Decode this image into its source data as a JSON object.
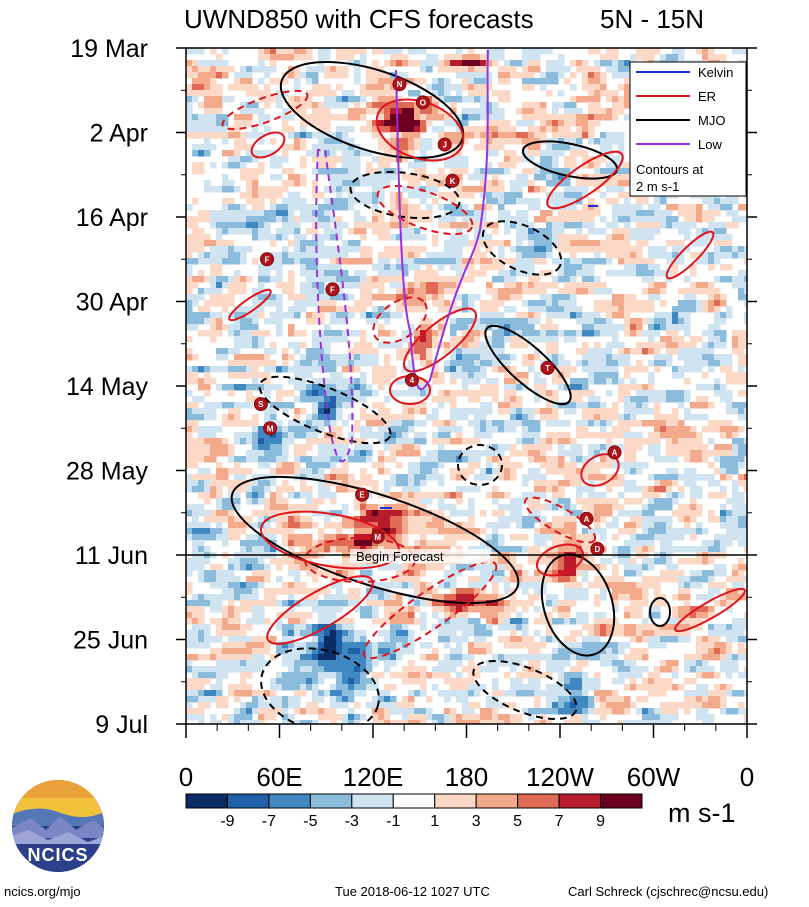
{
  "chart_data": {
    "type": "heatmap",
    "title": "UWND850 with CFS forecasts",
    "region": "5N - 15N",
    "y_axis": {
      "labels": [
        "19 Mar",
        "2 Apr",
        "16 Apr",
        "30 Apr",
        "14 May",
        "28 May",
        "11 Jun",
        "25 Jun",
        "9 Jul"
      ],
      "range": [
        "2018-03-19",
        "2018-07-09"
      ]
    },
    "x_axis": {
      "labels": [
        "0",
        "60E",
        "120E",
        "180",
        "120W",
        "60W",
        "0"
      ],
      "range_deg_east": [
        0,
        360
      ]
    },
    "colorbar": {
      "ticks": [
        "-9",
        "-7",
        "-5",
        "-3",
        "-1",
        "1",
        "3",
        "5",
        "7",
        "9"
      ],
      "colors": [
        "#0b2d63",
        "#1f60a8",
        "#3f88c2",
        "#8cbcdc",
        "#cfe3f0",
        "#ffffff",
        "#fbd9c6",
        "#f3a98c",
        "#df6a56",
        "#b81c2c",
        "#6b0020"
      ],
      "units": "m s-1"
    },
    "legend": {
      "position": "top-right",
      "entries": [
        {
          "name": "Kelvin",
          "color": "#1a2fd6"
        },
        {
          "name": "ER",
          "color": "#e0141c"
        },
        {
          "name": "MJO",
          "color": "#000000"
        },
        {
          "name": "Low",
          "color": "#9b30e0"
        }
      ],
      "note_line1": "Contours at",
      "note_line2": "2 m s-1"
    },
    "annotations": {
      "forecast_line_label": "Begin Forecast",
      "forecast_start": "2018-06-11"
    },
    "storm_markers": [
      {
        "letter": "N",
        "lon": 137,
        "date": "2018-03-25"
      },
      {
        "letter": "O",
        "lon": 152,
        "date": "2018-03-28"
      },
      {
        "letter": "J",
        "lon": 166,
        "date": "2018-04-04"
      },
      {
        "letter": "K",
        "lon": 171,
        "date": "2018-04-10"
      },
      {
        "letter": "F",
        "lon": 52,
        "date": "2018-04-23"
      },
      {
        "letter": "F",
        "lon": 94,
        "date": "2018-04-28"
      },
      {
        "letter": "4",
        "lon": 145,
        "date": "2018-05-13"
      },
      {
        "letter": "T",
        "lon": 232,
        "date": "2018-05-11"
      },
      {
        "letter": "S",
        "lon": 48,
        "date": "2018-05-17"
      },
      {
        "letter": "M",
        "lon": 54,
        "date": "2018-05-21"
      },
      {
        "letter": "A",
        "lon": 275,
        "date": "2018-05-25"
      },
      {
        "letter": "E",
        "lon": 113,
        "date": "2018-06-01"
      },
      {
        "letter": "A",
        "lon": 257,
        "date": "2018-06-05"
      },
      {
        "letter": "M",
        "lon": 123,
        "date": "2018-06-08"
      },
      {
        "letter": "D",
        "lon": 264,
        "date": "2018-06-10"
      }
    ]
  },
  "logo": {
    "text": "NCICS"
  },
  "footer": {
    "left": "ncics.org/mjo",
    "center": "Tue 2018-06-12 1027 UTC",
    "right": "Carl Schreck (cjschrec@ncsu.edu)"
  }
}
